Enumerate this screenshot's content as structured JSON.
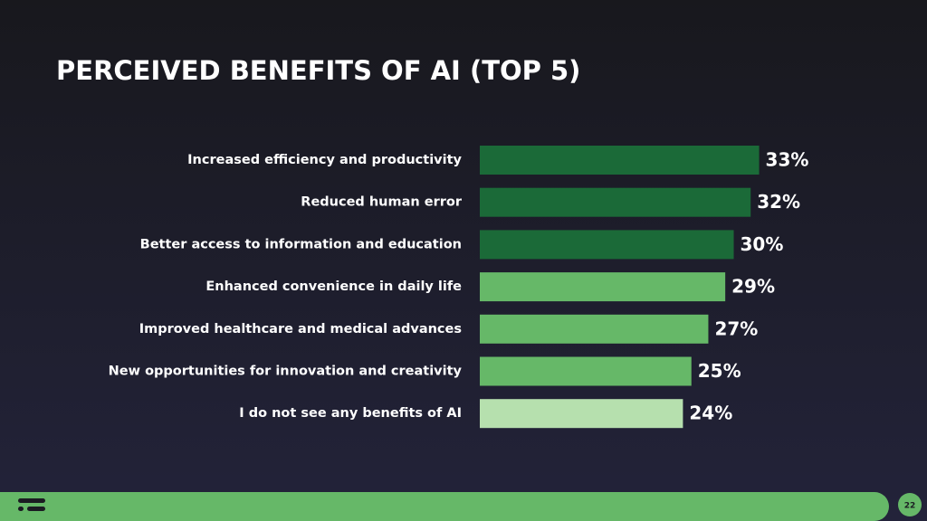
{
  "chart_data": {
    "type": "bar",
    "orientation": "horizontal",
    "title": "PERCEIVED BENEFITS OF AI (TOP 5)",
    "categories": [
      "Increased efficiency and productivity",
      "Reduced human error",
      "Better access to information and education",
      "Enhanced convenience in daily life",
      "Improved healthcare and medical advances",
      "New opportunities for innovation and creativity",
      "I do not see any benefits of AI"
    ],
    "values": [
      33,
      32,
      30,
      29,
      27,
      25,
      24
    ],
    "value_labels": [
      "33%",
      "32%",
      "30%",
      "29%",
      "27%",
      "25%",
      "24%"
    ],
    "colors": [
      "#1b6a38",
      "#1b6a38",
      "#1b6a38",
      "#66b868",
      "#66b868",
      "#66b868",
      "#b6e0ae"
    ]
  },
  "page_number": "22"
}
